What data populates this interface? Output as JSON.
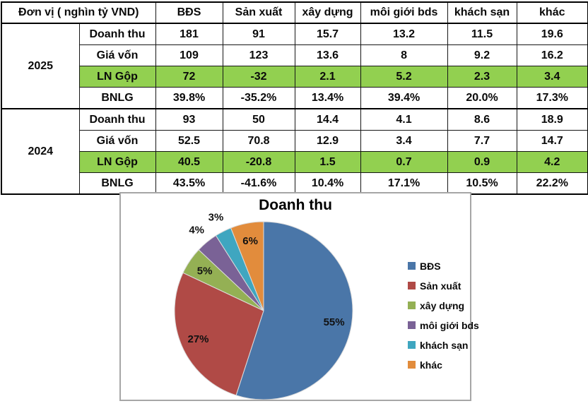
{
  "table": {
    "unit_header": "Đơn vị ( nghìn tỷ VND)",
    "columns": [
      "BĐS",
      "Sản xuất",
      "xây dựng",
      "môi giới bds",
      "khách sạn",
      "khác"
    ],
    "highlight_color": "#92D050",
    "sections": [
      {
        "year": "2025",
        "rows": [
          {
            "label": "Doanh thu",
            "values": [
              "181",
              "91",
              "15.7",
              "13.2",
              "11.5",
              "19.6"
            ],
            "highlight": false
          },
          {
            "label": "Giá vốn",
            "values": [
              "109",
              "123",
              "13.6",
              "8",
              "9.2",
              "16.2"
            ],
            "highlight": false
          },
          {
            "label": "LN Gộp",
            "values": [
              "72",
              "-32",
              "2.1",
              "5.2",
              "2.3",
              "3.4"
            ],
            "highlight": true
          },
          {
            "label": "BNLG",
            "values": [
              "39.8%",
              "-35.2%",
              "13.4%",
              "39.4%",
              "20.0%",
              "17.3%"
            ],
            "highlight": false
          }
        ]
      },
      {
        "year": "2024",
        "rows": [
          {
            "label": "Doanh thu",
            "values": [
              "93",
              "50",
              "14.4",
              "4.1",
              "8.6",
              "18.9"
            ],
            "highlight": false
          },
          {
            "label": "Giá vốn",
            "values": [
              "52.5",
              "70.8",
              "12.9",
              "3.4",
              "7.7",
              "14.7"
            ],
            "highlight": false
          },
          {
            "label": "LN Gộp",
            "values": [
              "40.5",
              "-20.8",
              "1.5",
              "0.7",
              "0.9",
              "4.2"
            ],
            "highlight": true
          },
          {
            "label": "BNLG",
            "values": [
              "43.5%",
              "-41.6%",
              "10.4%",
              "17.1%",
              "10.5%",
              "22.2%"
            ],
            "highlight": false
          }
        ]
      }
    ]
  },
  "chart_data": {
    "type": "pie",
    "title": "Doanh thu",
    "legend_position": "right",
    "start_angle_deg": 0,
    "direction": "clockwise",
    "slices": [
      {
        "label": "BĐS",
        "value": 55,
        "percent_label": "55%",
        "color": "#4A76A8"
      },
      {
        "label": "Sản xuất",
        "value": 27,
        "percent_label": "27%",
        "color": "#B04A46"
      },
      {
        "label": "xây dựng",
        "value": 5,
        "percent_label": "5%",
        "color": "#94B054"
      },
      {
        "label": "môi giới bds",
        "value": 4,
        "percent_label": "4%",
        "color": "#7A6296"
      },
      {
        "label": "khách sạn",
        "value": 3,
        "percent_label": "3%",
        "color": "#3FA6C0"
      },
      {
        "label": "khác",
        "value": 6,
        "percent_label": "6%",
        "color": "#E28C3C"
      }
    ]
  }
}
